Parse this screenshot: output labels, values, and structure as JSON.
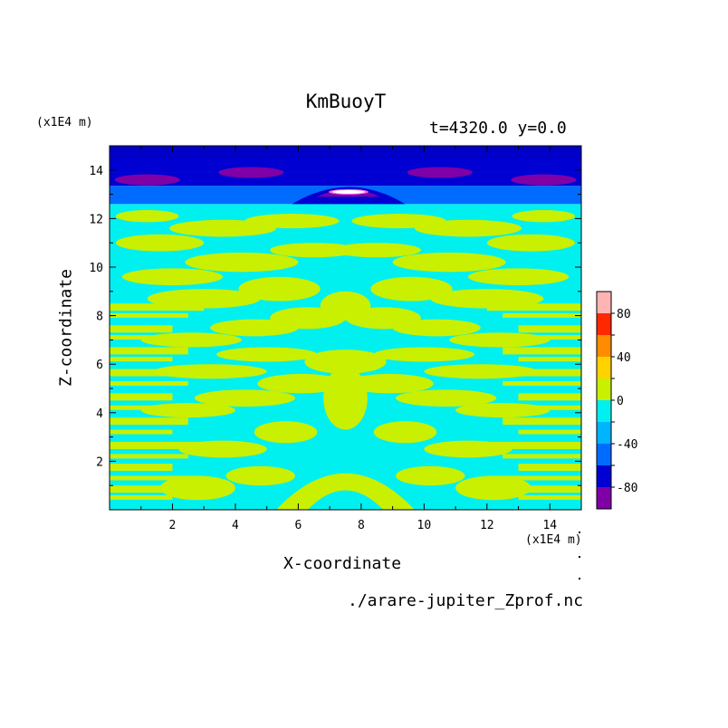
{
  "chart_data": {
    "type": "heatmap",
    "title": "KmBuoyT",
    "subtitle": "t=4320.0 y=0.0",
    "xlabel": "X-coordinate",
    "ylabel": "Z-coordinate",
    "x_unit": "(x1E4 m)",
    "z_unit": "(x1E4 m)",
    "xlim": [
      0,
      15
    ],
    "ylim": [
      0,
      15
    ],
    "x_ticks": [
      2,
      4,
      6,
      8,
      10,
      12,
      14
    ],
    "y_ticks": [
      2,
      4,
      6,
      8,
      10,
      12,
      14
    ],
    "colorbar": {
      "range": [
        -100,
        100
      ],
      "step": 20,
      "tick_labels": [
        "-80",
        "-40",
        "0",
        "40",
        "80"
      ],
      "tick_values": [
        -80,
        -40,
        0,
        40,
        80
      ],
      "colors": [
        "#7f00a6",
        "#0000d2",
        "#006cff",
        "#00b4ff",
        "#00f0f0",
        "#c8f000",
        "#ffd200",
        "#ff8c00",
        "#ff2800",
        "#ffb4b4"
      ]
    },
    "background_bands": [
      {
        "z_from": 0,
        "z_to": 12.6,
        "range": [
          -20,
          0
        ],
        "color": "#00f0f0"
      },
      {
        "z_from": 12.6,
        "z_to": 13.35,
        "range": [
          -60,
          -40
        ],
        "color": "#006cff"
      },
      {
        "z_from": 13.35,
        "z_to": 13.9,
        "range": [
          -80,
          -60
        ],
        "color": "#0000d2"
      },
      {
        "z_from": 13.9,
        "z_to": 15,
        "range": [
          -80,
          -60
        ],
        "color": "#0000d2"
      }
    ],
    "dark_blue_top": "#0000c8",
    "minimum_regions": [
      {
        "x_center": 1.2,
        "z_center": 13.6,
        "range": [
          -100,
          -80
        ],
        "color": "#7f00a6"
      },
      {
        "x_center": 4.5,
        "z_center": 13.9,
        "range": [
          -100,
          -80
        ],
        "color": "#7f00a6"
      },
      {
        "x_center": 10.5,
        "z_center": 13.9,
        "range": [
          -100,
          -80
        ],
        "color": "#7f00a6"
      },
      {
        "x_center": 13.8,
        "z_center": 13.6,
        "range": [
          -100,
          -80
        ],
        "color": "#7f00a6"
      }
    ],
    "maximum_region": {
      "x_center": 7.6,
      "z_center": 13.1,
      "range": [
        80,
        100
      ],
      "color": "#ffffff"
    }
  },
  "source_file": "./arare-jupiter_Zprof.nc"
}
